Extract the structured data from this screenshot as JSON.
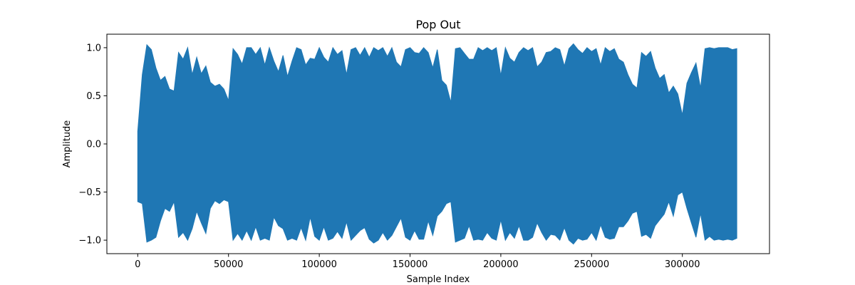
{
  "chart_data": {
    "type": "line",
    "title": "Pop Out",
    "xlabel": "Sample Index",
    "ylabel": "Amplitude",
    "xlim": [
      -17000,
      348000
    ],
    "ylim": [
      -1.14,
      1.14
    ],
    "x_ticks": [
      0,
      50000,
      100000,
      150000,
      200000,
      250000,
      300000
    ],
    "x_tick_labels": [
      "0",
      "50000",
      "100000",
      "150000",
      "200000",
      "250000",
      "300000"
    ],
    "y_ticks": [
      -1.0,
      -0.5,
      0.0,
      0.5,
      1.0
    ],
    "y_tick_labels": [
      "−1.0",
      "−0.5",
      "0.0",
      "0.5",
      "1.0"
    ],
    "grid": false,
    "legend": "none",
    "series": [
      {
        "color": "#1f77b4",
        "x_step": 2500,
        "x": [
          0,
          2500,
          5000,
          7500,
          10000,
          12500,
          15000,
          17500,
          20000,
          22500,
          25000,
          27500,
          30000,
          32500,
          35000,
          37500,
          40000,
          42500,
          45000,
          47500,
          50000,
          52500,
          55000,
          57500,
          60000,
          62500,
          65000,
          67500,
          70000,
          72500,
          75000,
          77500,
          80000,
          82500,
          85000,
          87500,
          90000,
          92500,
          95000,
          97500,
          100000,
          102500,
          105000,
          107500,
          110000,
          112500,
          115000,
          117500,
          120000,
          122500,
          125000,
          127500,
          130000,
          132500,
          135000,
          137500,
          140000,
          142500,
          145000,
          147500,
          150000,
          152500,
          155000,
          157500,
          160000,
          162500,
          165000,
          167500,
          170000,
          172500,
          175000,
          177500,
          180000,
          182500,
          185000,
          187500,
          190000,
          192500,
          195000,
          197500,
          200000,
          202500,
          205000,
          207500,
          210000,
          212500,
          215000,
          217500,
          220000,
          222500,
          225000,
          227500,
          230000,
          232500,
          235000,
          237500,
          240000,
          242500,
          245000,
          247500,
          250000,
          252500,
          255000,
          257500,
          260000,
          262500,
          265000,
          267500,
          270000,
          272500,
          275000,
          277500,
          280000,
          282500,
          285000,
          287500,
          290000,
          292500,
          295000,
          297500,
          300000,
          302500,
          305000,
          307500,
          310000,
          312500,
          315000,
          317500,
          320000,
          322500,
          325000,
          327500,
          330000
        ],
        "y_max": [
          0.13,
          0.72,
          1.03,
          0.98,
          0.79,
          0.66,
          0.7,
          0.57,
          0.55,
          0.95,
          0.88,
          1.0,
          0.72,
          0.9,
          0.73,
          0.81,
          0.64,
          0.6,
          0.62,
          0.57,
          0.45,
          0.99,
          0.93,
          0.83,
          1.0,
          1.0,
          0.93,
          1.0,
          0.82,
          1.0,
          0.86,
          0.75,
          0.92,
          0.7,
          0.86,
          1.0,
          0.98,
          0.82,
          0.89,
          0.88,
          1.0,
          0.9,
          0.85,
          1.0,
          0.93,
          0.97,
          0.72,
          0.98,
          1.0,
          0.92,
          1.0,
          0.9,
          1.0,
          0.97,
          1.0,
          0.91,
          1.0,
          0.85,
          0.8,
          0.98,
          1.0,
          0.95,
          0.94,
          1.0,
          0.95,
          0.79,
          0.98,
          0.66,
          0.61,
          0.43,
          0.99,
          1.0,
          0.94,
          0.88,
          0.88,
          1.0,
          0.97,
          1.0,
          0.97,
          1.0,
          0.71,
          1.0,
          0.89,
          0.85,
          0.95,
          1.0,
          0.97,
          1.0,
          0.8,
          0.85,
          0.95,
          0.96,
          1.0,
          0.98,
          0.81,
          0.99,
          1.04,
          0.98,
          0.94,
          1.0,
          0.96,
          0.99,
          0.82,
          1.0,
          0.96,
          0.99,
          0.88,
          0.85,
          0.72,
          0.62,
          0.58,
          0.95,
          0.91,
          0.96,
          0.79,
          0.68,
          0.72,
          0.53,
          0.6,
          0.52,
          0.3,
          0.63,
          0.74,
          0.84,
          0.58,
          0.99,
          1.0,
          0.99,
          1.0,
          1.0,
          1.0,
          0.98,
          0.99,
          1.0,
          0.95
        ],
        "y_min": [
          -0.6,
          -0.62,
          -1.02,
          -1.0,
          -0.97,
          -0.8,
          -0.67,
          -0.7,
          -0.6,
          -0.97,
          -0.92,
          -1.0,
          -0.88,
          -0.7,
          -0.82,
          -0.93,
          -0.67,
          -0.59,
          -0.62,
          -0.58,
          -0.6,
          -1.0,
          -0.93,
          -1.0,
          -0.9,
          -1.0,
          -0.86,
          -1.0,
          -0.98,
          -1.0,
          -0.76,
          -0.85,
          -0.88,
          -1.0,
          -0.98,
          -1.0,
          -0.87,
          -1.0,
          -0.76,
          -0.96,
          -1.0,
          -0.86,
          -1.0,
          -0.98,
          -0.91,
          -0.98,
          -0.81,
          -1.0,
          -0.95,
          -0.9,
          -0.87,
          -0.99,
          -1.03,
          -1.0,
          -0.92,
          -1.0,
          -0.95,
          -0.86,
          -0.77,
          -0.97,
          -1.0,
          -0.9,
          -0.99,
          -0.99,
          -0.8,
          -0.95,
          -0.75,
          -0.7,
          -0.62,
          -0.6,
          -1.02,
          -1.0,
          -0.98,
          -0.85,
          -1.0,
          -0.99,
          -1.0,
          -0.92,
          -0.98,
          -1.0,
          -0.79,
          -1.0,
          -0.92,
          -0.98,
          -0.85,
          -1.0,
          -1.0,
          -0.97,
          -0.82,
          -0.92,
          -1.0,
          -0.94,
          -0.95,
          -1.0,
          -0.87,
          -1.0,
          -1.04,
          -0.98,
          -1.0,
          -0.99,
          -0.92,
          -1.0,
          -0.84,
          -0.97,
          -0.99,
          -0.98,
          -0.86,
          -0.86,
          -0.8,
          -0.72,
          -0.7,
          -0.96,
          -0.94,
          -0.98,
          -0.85,
          -0.79,
          -0.73,
          -0.6,
          -0.75,
          -0.53,
          -0.5,
          -0.67,
          -0.82,
          -0.97,
          -0.72,
          -1.0,
          -0.96,
          -1.0,
          -0.99,
          -1.0,
          -0.99,
          -1.0,
          -0.98,
          -1.0,
          -0.96
        ]
      }
    ]
  }
}
